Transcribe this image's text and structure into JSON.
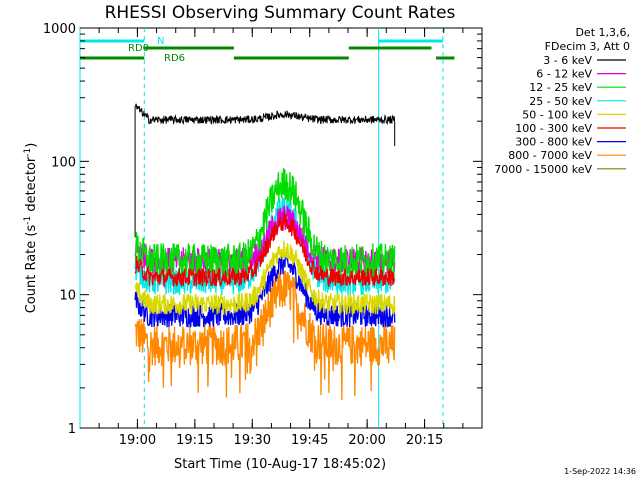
{
  "chart_data": {
    "type": "line",
    "title": "RHESSI Observing Summary Count Rates",
    "xlabel": "Start Time (10-Aug-17 18:45:02)",
    "ylabel_main": "Count Rate (s",
    "ylabel_sup1": "-1",
    "ylabel_mid": " detector",
    "ylabel_sup2": "-1",
    "ylabel_end": ")",
    "y_scale": "log",
    "ylim": [
      1,
      1000
    ],
    "xlim_minutes": [
      18.75,
      20.5
    ],
    "y_ticks": [
      {
        "value": 1,
        "label": "1"
      },
      {
        "value": 10,
        "label": "10"
      },
      {
        "value": 100,
        "label": "100"
      },
      {
        "value": 1000,
        "label": "1000"
      }
    ],
    "x_ticks": [
      {
        "hour": 19.0,
        "label": "19:00"
      },
      {
        "hour": 19.25,
        "label": "19:15"
      },
      {
        "hour": 19.5,
        "label": "19:30"
      },
      {
        "hour": 19.75,
        "label": "19:45"
      },
      {
        "hour": 20.0,
        "label": "20:00"
      },
      {
        "hour": 20.25,
        "label": "20:15"
      }
    ],
    "legend_header": [
      "Det 1,3,6,",
      "FDecim 3, Att 0"
    ],
    "legend_position": "right",
    "series": [
      {
        "name": "3 - 6 keV",
        "color": "#000000",
        "start": 18.99,
        "end": 20.12,
        "base": 205,
        "flare_peak": 225,
        "noise": 0.03
      },
      {
        "name": "6 - 12 keV",
        "color": "#e000e0",
        "start": 18.99,
        "end": 20.12,
        "base": 18,
        "flare_peak": 38,
        "noise": 0.1
      },
      {
        "name": "12 - 25 keV",
        "color": "#00dd00",
        "start": 18.99,
        "end": 20.12,
        "base": 18,
        "flare_peak": 68,
        "noise": 0.13
      },
      {
        "name": "25 - 50 keV",
        "color": "#00e8e8",
        "start": 18.99,
        "end": 20.12,
        "base": 12.5,
        "flare_peak": 44,
        "noise": 0.1
      },
      {
        "name": "50 - 100 keV",
        "color": "#d8d800",
        "start": 18.99,
        "end": 20.12,
        "base": 8.5,
        "flare_peak": 22,
        "noise": 0.08
      },
      {
        "name": "100 - 300 keV",
        "color": "#ee0000",
        "start": 18.99,
        "end": 20.12,
        "base": 13.5,
        "flare_peak": 35,
        "noise": 0.07
      },
      {
        "name": "300 - 800 keV",
        "color": "#0000ee",
        "start": 18.99,
        "end": 20.12,
        "base": 7.0,
        "flare_peak": 17,
        "noise": 0.09
      },
      {
        "name": "800 - 7000 keV",
        "color": "#ff8800",
        "start": 18.99,
        "end": 20.12,
        "base": 4.2,
        "flare_peak": 11,
        "noise": 0.16
      },
      {
        "name": "7000 - 15000 keV",
        "color": "#808000",
        "start": null,
        "end": null,
        "base": null,
        "flare_peak": null,
        "noise": null
      }
    ],
    "flare_center": 19.64,
    "flare_width": 0.085,
    "vertical_lines": [
      {
        "hour": 18.75,
        "style": "solid",
        "color": "#00e8e8"
      },
      {
        "hour": 19.03,
        "style": "dashed",
        "color": "#00e8e8"
      },
      {
        "hour": 20.05,
        "style": "solid",
        "color": "#00e8e8"
      },
      {
        "hour": 20.33,
        "style": "dashed",
        "color": "#00e8e8"
      }
    ],
    "night_bars": {
      "color": "#00e8e8",
      "label": "N",
      "segments": [
        [
          18.75,
          19.03
        ],
        [
          20.05,
          20.33
        ]
      ]
    },
    "saa_bars": {
      "color": "#008800",
      "label_rd0": "RD0",
      "label_rd6": "RD6",
      "upper_segments": [
        [
          19.03,
          19.42
        ],
        [
          19.92,
          20.28
        ]
      ],
      "lower_segments": [
        [
          18.75,
          19.03
        ],
        [
          19.42,
          19.92
        ],
        [
          20.3,
          20.38
        ]
      ]
    }
  },
  "footer": {
    "timestamp": "1-Sep-2022 14:36"
  }
}
